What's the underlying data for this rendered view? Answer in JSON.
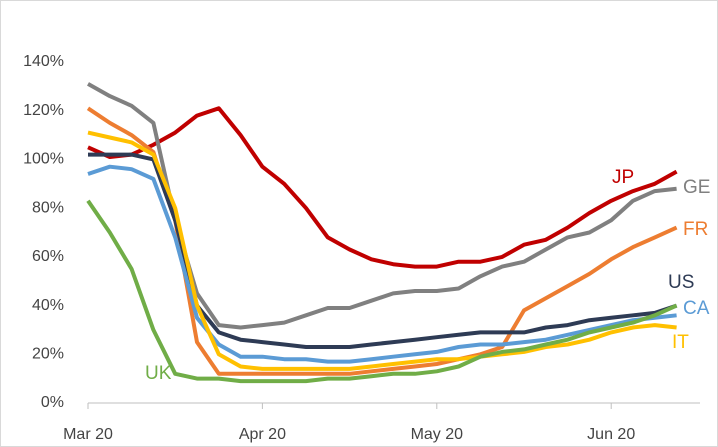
{
  "chart_data": {
    "type": "line",
    "categories": [
      "Mar 20",
      null,
      null,
      null,
      null,
      null,
      null,
      null,
      "Apr 20",
      null,
      null,
      null,
      null,
      null,
      null,
      null,
      "May 20",
      null,
      null,
      null,
      null,
      null,
      null,
      null,
      "Jun 20",
      null,
      null,
      null
    ],
    "ylim": [
      0,
      140
    ],
    "yticks": [
      {
        "value": 0,
        "label": "0%"
      },
      {
        "value": 20,
        "label": "20%"
      },
      {
        "value": 40,
        "label": "40%"
      },
      {
        "value": 60,
        "label": "60%"
      },
      {
        "value": 80,
        "label": "80%"
      },
      {
        "value": 100,
        "label": "100%"
      },
      {
        "value": 120,
        "label": "120%"
      },
      {
        "value": 140,
        "label": "140%"
      }
    ],
    "grid": false,
    "series": [
      {
        "name": "JP",
        "color": "#c00000",
        "values": [
          105,
          101,
          102,
          106,
          111,
          118,
          121,
          110,
          97,
          90,
          80,
          68,
          63,
          59,
          57,
          56,
          56,
          58,
          58,
          60,
          65,
          67,
          72,
          78,
          83,
          87,
          90,
          95
        ]
      },
      {
        "name": "GE",
        "color": "#808080",
        "values": [
          131,
          126,
          122,
          115,
          75,
          45,
          32,
          31,
          32,
          33,
          36,
          39,
          39,
          42,
          45,
          46,
          46,
          47,
          52,
          56,
          58,
          63,
          68,
          70,
          75,
          83,
          87,
          88
        ]
      },
      {
        "name": "FR",
        "color": "#ed7d31",
        "values": [
          121,
          115,
          110,
          103,
          75,
          25,
          12,
          12,
          12,
          12,
          12,
          12,
          12,
          13,
          14,
          15,
          16,
          18,
          20,
          23,
          38,
          43,
          48,
          53,
          59,
          64,
          68,
          72
        ]
      },
      {
        "name": "US",
        "color": "#2e3b55",
        "values": [
          102,
          102,
          102,
          100,
          75,
          40,
          29,
          26,
          25,
          24,
          23,
          23,
          23,
          24,
          25,
          26,
          27,
          28,
          29,
          29,
          29,
          31,
          32,
          34,
          35,
          36,
          37,
          40
        ]
      },
      {
        "name": "CA",
        "color": "#5b9bd5",
        "values": [
          94,
          97,
          96,
          92,
          68,
          35,
          24,
          19,
          19,
          18,
          18,
          17,
          17,
          18,
          19,
          20,
          21,
          23,
          24,
          24,
          25,
          26,
          28,
          30,
          32,
          34,
          35,
          36
        ]
      },
      {
        "name": "IT",
        "color": "#ffc000",
        "values": [
          111,
          109,
          107,
          102,
          80,
          40,
          20,
          15,
          14,
          14,
          14,
          14,
          14,
          15,
          16,
          17,
          18,
          18,
          19,
          20,
          21,
          23,
          24,
          26,
          29,
          31,
          32,
          31
        ]
      },
      {
        "name": "UK",
        "color": "#70ad47",
        "values": [
          83,
          70,
          55,
          30,
          12,
          10,
          10,
          9,
          9,
          9,
          9,
          10,
          10,
          11,
          12,
          12,
          13,
          15,
          19,
          21,
          22,
          24,
          26,
          29,
          31,
          33,
          36,
          40
        ]
      }
    ]
  }
}
